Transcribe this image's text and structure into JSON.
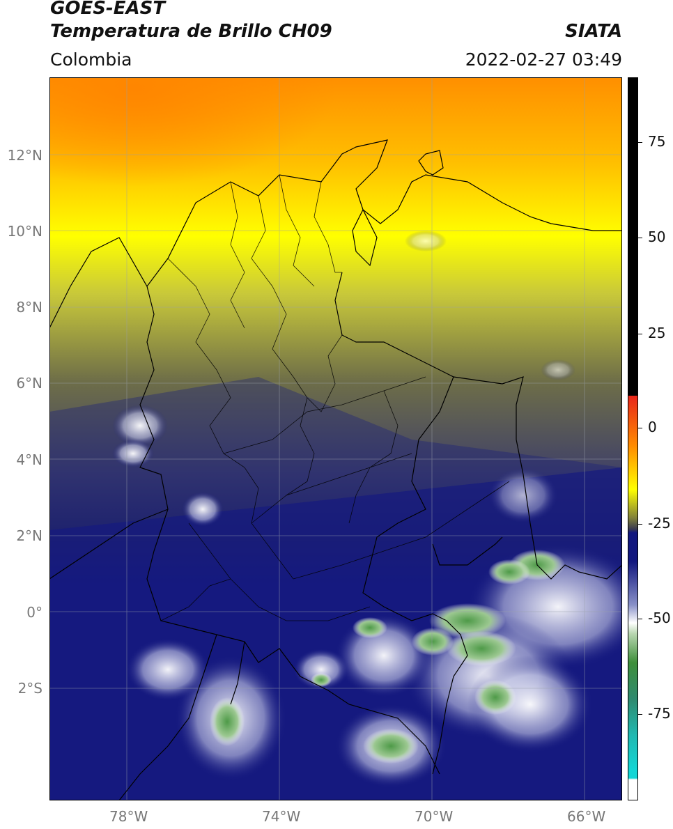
{
  "header": {
    "satellite": "GOES-EAST",
    "product": "Temperatura de Brillo CH09",
    "region": "Colombia",
    "org": "SIATA",
    "datetime": "2022-02-27 03:49"
  },
  "map": {
    "lat_ticks": [
      "12°N",
      "10°N",
      "8°N",
      "6°N",
      "4°N",
      "2°N",
      "0°",
      "2°S"
    ],
    "lon_ticks": [
      "78°W",
      "74°W",
      "70°W",
      "66°W"
    ],
    "extent": {
      "lon_min": -80,
      "lon_max": -65,
      "lat_min": -5,
      "lat_max": 14
    }
  },
  "colorbar": {
    "labels": [
      "75",
      "50",
      "25",
      "0",
      "-25",
      "-50",
      "-75"
    ],
    "range": [
      -95,
      90
    ],
    "colors": {
      "black": "#000000",
      "red": "#e8251a",
      "orange": "#ff8c00",
      "yellow": "#ffff00",
      "olive": "#7f7f3a",
      "navy": "#12177f",
      "white": "#ffffff",
      "green": "#3e8f3a",
      "cyan": "#13d6d6"
    }
  }
}
